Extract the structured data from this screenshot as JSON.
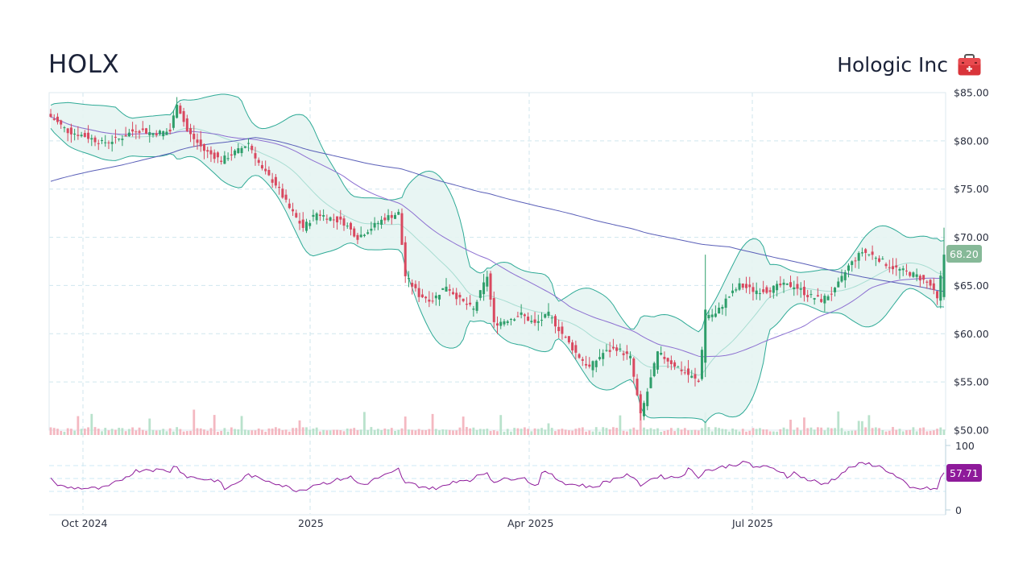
{
  "header": {
    "ticker": "HOLX",
    "company": "Hologic Inc",
    "sector_icon": "medical-kit-icon"
  },
  "colors": {
    "up": "#2e9e6a",
    "down": "#d9485f",
    "up_volume": "#b9e2cc",
    "down_volume": "#f4b8c1",
    "band_line": "#2eaa96",
    "band_fill": "#e6f4f2",
    "band_mid": "#a8ddd2",
    "sma50": "#8c6fd1",
    "sma200": "#5a5fb8",
    "rsi": "#8e1a9a",
    "price_badge": "#86b998",
    "rsi_badge": "#8e1a9a",
    "grid": "#cfe6ee"
  },
  "chart_data": {
    "type": "candlestick",
    "title": "HOLX",
    "subtitle": "Hologic Inc",
    "x_ticks": [
      "Oct 2024",
      "2025",
      "Apr 2025",
      "Jul 2025"
    ],
    "y_ticks": [
      "$85.00",
      "$80.00",
      "$75.00",
      "$70.00",
      "$65.00",
      "$60.00",
      "$55.00",
      "$50.00"
    ],
    "ylim": [
      50,
      85
    ],
    "rsi_ticks": [
      "100",
      "0"
    ],
    "rsi_ylim": [
      0,
      100
    ],
    "last_price": "68.20",
    "last_rsi": "57.71",
    "indicators": [
      "Bollinger Bands (20,2)",
      "SMA 50",
      "SMA 200",
      "Volume",
      "RSI 14"
    ],
    "close_path": [
      [
        0,
        82.5
      ],
      [
        5,
        81.0
      ],
      [
        10,
        80.5
      ],
      [
        15,
        79.8
      ],
      [
        20,
        80.2
      ],
      [
        25,
        81.2
      ],
      [
        30,
        80.8
      ],
      [
        35,
        81.0
      ],
      [
        37,
        84.0
      ],
      [
        40,
        81.0
      ],
      [
        45,
        79.0
      ],
      [
        50,
        78.0
      ],
      [
        55,
        79.0
      ],
      [
        58,
        79.8
      ],
      [
        62,
        77.0
      ],
      [
        66,
        75.5
      ],
      [
        70,
        73.0
      ],
      [
        74,
        71.0
      ],
      [
        78,
        72.5
      ],
      [
        82,
        72.0
      ],
      [
        86,
        71.5
      ],
      [
        90,
        70.0
      ],
      [
        94,
        71.0
      ],
      [
        98,
        72.0
      ],
      [
        102,
        72.5
      ],
      [
        104,
        66.0
      ],
      [
        108,
        64.0
      ],
      [
        112,
        63.5
      ],
      [
        116,
        65.0
      ],
      [
        120,
        63.5
      ],
      [
        124,
        62.5
      ],
      [
        128,
        66.0
      ],
      [
        130,
        61.0
      ],
      [
        134,
        61.5
      ],
      [
        138,
        62.0
      ],
      [
        142,
        61.0
      ],
      [
        146,
        62.0
      ],
      [
        150,
        60.0
      ],
      [
        154,
        58.0
      ],
      [
        158,
        56.5
      ],
      [
        162,
        58.0
      ],
      [
        166,
        58.5
      ],
      [
        170,
        57.5
      ],
      [
        173,
        51.5
      ],
      [
        175,
        54.0
      ],
      [
        178,
        58.0
      ],
      [
        182,
        57.0
      ],
      [
        186,
        56.0
      ],
      [
        190,
        55.0
      ],
      [
        192,
        62.0
      ],
      [
        195,
        62.0
      ],
      [
        198,
        63.5
      ],
      [
        202,
        65.0
      ],
      [
        206,
        64.5
      ],
      [
        210,
        64.5
      ],
      [
        214,
        65.0
      ],
      [
        218,
        65.0
      ],
      [
        222,
        64.0
      ],
      [
        226,
        63.5
      ],
      [
        230,
        64.5
      ],
      [
        234,
        67.0
      ],
      [
        238,
        68.5
      ],
      [
        242,
        68.0
      ],
      [
        246,
        67.0
      ],
      [
        250,
        66.5
      ],
      [
        254,
        66.0
      ],
      [
        258,
        65.0
      ],
      [
        260,
        63.5
      ],
      [
        262,
        68.2
      ]
    ]
  }
}
